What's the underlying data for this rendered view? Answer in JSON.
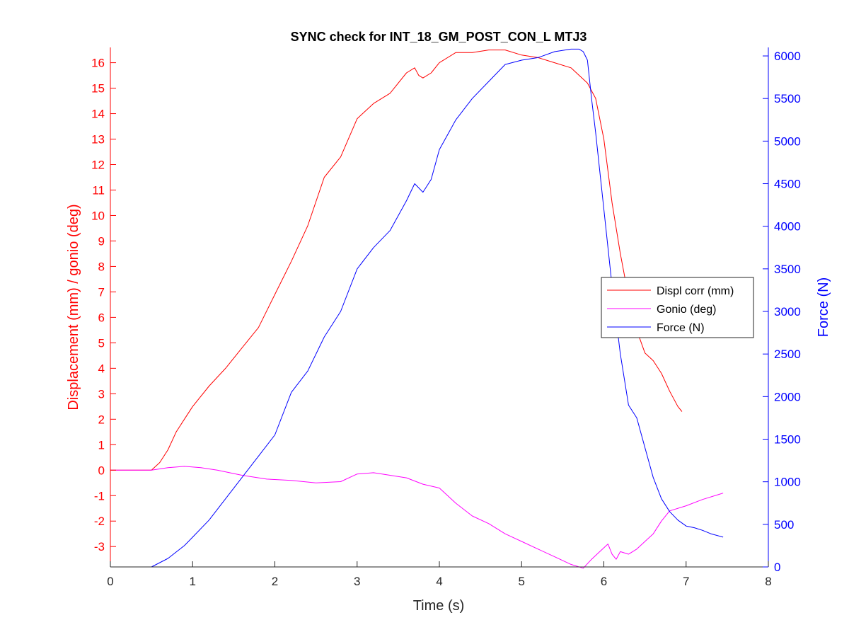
{
  "chart_data": {
    "type": "line",
    "title": "SYNC check for INT_18_GM_POST_CON_L MTJ3",
    "xlabel": "Time (s)",
    "ylabel_left": "Displacement (mm) / gonio (deg)",
    "ylabel_right": "Force (N)",
    "xlim": [
      0,
      8
    ],
    "ylim_left": [
      -3.8,
      16.6
    ],
    "ylim_right": [
      0,
      6100
    ],
    "x_ticks": [
      "0",
      "1",
      "2",
      "3",
      "4",
      "5",
      "6",
      "7",
      "8"
    ],
    "y_ticks_left": [
      "-3",
      "-2",
      "-1",
      "0",
      "1",
      "2",
      "3",
      "4",
      "5",
      "6",
      "7",
      "8",
      "9",
      "10",
      "11",
      "12",
      "13",
      "14",
      "15",
      "16"
    ],
    "y_ticks_right": [
      "0",
      "500",
      "1000",
      "1500",
      "2000",
      "2500",
      "3000",
      "3500",
      "4000",
      "4500",
      "5000",
      "5500",
      "6000"
    ],
    "grid": false,
    "legend_position": "right",
    "colors": {
      "displ": "#ff0000",
      "gonio": "#ff00ff",
      "force": "#0000ff",
      "axis": "#262626"
    },
    "series": [
      {
        "name": "Displ corr (mm)",
        "axis": "left",
        "x": [
          0,
          0.5,
          0.6,
          0.7,
          0.8,
          0.9,
          1.0,
          1.2,
          1.4,
          1.6,
          1.8,
          2.0,
          2.2,
          2.4,
          2.6,
          2.8,
          3.0,
          3.2,
          3.4,
          3.6,
          3.7,
          3.75,
          3.8,
          3.9,
          4.0,
          4.2,
          4.4,
          4.6,
          4.8,
          5.0,
          5.2,
          5.4,
          5.6,
          5.8,
          5.9,
          6.0,
          6.1,
          6.2,
          6.3,
          6.4,
          6.5,
          6.6,
          6.7,
          6.8,
          6.9,
          6.95
        ],
        "y": [
          0,
          0,
          0.3,
          0.8,
          1.5,
          2.0,
          2.5,
          3.3,
          4.0,
          4.8,
          5.6,
          6.9,
          8.2,
          9.6,
          11.5,
          12.3,
          13.8,
          14.4,
          14.8,
          15.6,
          15.8,
          15.5,
          15.4,
          15.6,
          16.0,
          16.4,
          16.4,
          16.5,
          16.5,
          16.3,
          16.2,
          16.0,
          15.8,
          15.2,
          14.6,
          13.0,
          10.5,
          8.5,
          6.8,
          5.5,
          4.6,
          4.3,
          3.8,
          3.1,
          2.5,
          2.3
        ]
      },
      {
        "name": "Gonio (deg)",
        "axis": "left",
        "x": [
          0,
          0.5,
          0.7,
          0.9,
          1.1,
          1.3,
          1.6,
          1.9,
          2.2,
          2.5,
          2.8,
          3.0,
          3.2,
          3.4,
          3.6,
          3.8,
          4.0,
          4.2,
          4.4,
          4.6,
          4.8,
          5.0,
          5.2,
          5.4,
          5.6,
          5.75,
          5.85,
          5.95,
          6.05,
          6.1,
          6.15,
          6.2,
          6.3,
          6.4,
          6.5,
          6.6,
          6.7,
          6.8,
          7.0,
          7.2,
          7.4,
          7.45
        ],
        "y": [
          0,
          0,
          0.1,
          0.15,
          0.1,
          0,
          -0.2,
          -0.35,
          -0.4,
          -0.5,
          -0.45,
          -0.15,
          -0.1,
          -0.2,
          -0.3,
          -0.55,
          -0.7,
          -1.3,
          -1.8,
          -2.1,
          -2.5,
          -2.8,
          -3.1,
          -3.4,
          -3.7,
          -3.85,
          -3.5,
          -3.2,
          -2.9,
          -3.3,
          -3.5,
          -3.2,
          -3.3,
          -3.1,
          -2.8,
          -2.5,
          -2.0,
          -1.6,
          -1.4,
          -1.15,
          -0.95,
          -0.9
        ]
      },
      {
        "name": "Force (N)",
        "axis": "right",
        "x": [
          0,
          0.5,
          0.7,
          0.9,
          1.0,
          1.2,
          1.4,
          1.6,
          1.8,
          2.0,
          2.2,
          2.4,
          2.6,
          2.8,
          3.0,
          3.2,
          3.4,
          3.6,
          3.7,
          3.75,
          3.8,
          3.9,
          4.0,
          4.2,
          4.4,
          4.6,
          4.8,
          5.0,
          5.2,
          5.4,
          5.6,
          5.7,
          5.75,
          5.8,
          5.85,
          5.9,
          6.0,
          6.1,
          6.2,
          6.3,
          6.4,
          6.5,
          6.6,
          6.7,
          6.8,
          6.9,
          7.0,
          7.1,
          7.2,
          7.3,
          7.45
        ],
        "y": [
          0,
          0,
          100,
          250,
          350,
          550,
          800,
          1050,
          1300,
          1550,
          2050,
          2300,
          2700,
          3000,
          3500,
          3750,
          3950,
          4300,
          4500,
          4450,
          4400,
          4550,
          4900,
          5250,
          5500,
          5700,
          5900,
          5950,
          5980,
          6050,
          6080,
          6080,
          6050,
          5950,
          5500,
          5100,
          4200,
          3300,
          2500,
          1900,
          1750,
          1400,
          1050,
          800,
          650,
          550,
          480,
          460,
          430,
          390,
          350
        ]
      }
    ]
  }
}
